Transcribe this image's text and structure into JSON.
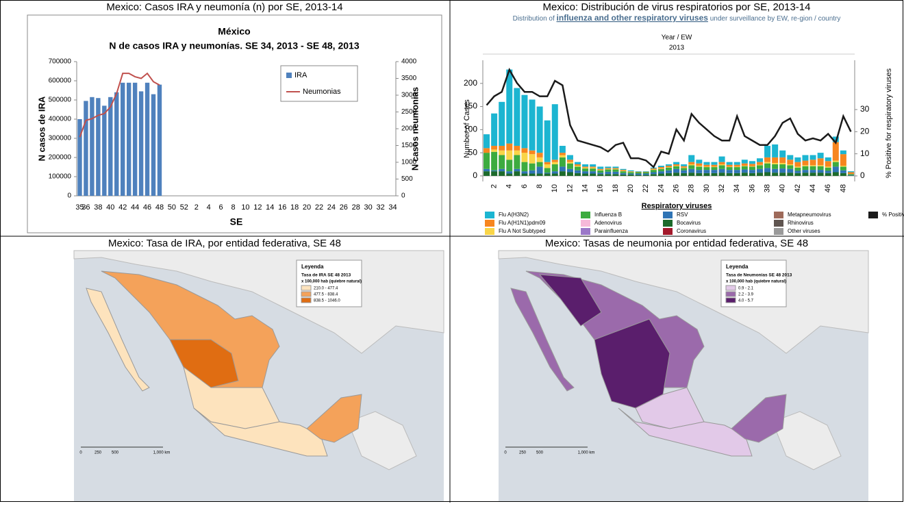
{
  "panels": [
    "Mexico: Casos IRA y neumonía (n) por SE, 2013-14",
    "Mexico: Distribución de virus respiratorios por SE, 2013-14",
    "Mexico: Tasa de IRA, por entidad federativa, SE 48",
    "Mexico: Tasas de neumonia por entidad federativa, SE 48"
  ],
  "chart_data": [
    {
      "type": "bar",
      "title": "México",
      "subtitle": "N de casos IRA y neumonías. SE 34, 2013 - SE 48, 2013",
      "x_label": "SE",
      "y_label": "N casos de IRA",
      "y2_label": "N casos neumonias",
      "categories": [
        "35",
        "36",
        null,
        "38",
        null,
        "40",
        null,
        "42",
        null,
        "44",
        null,
        "46",
        null,
        "48",
        null,
        "50",
        null,
        "52",
        null,
        "2",
        null,
        "4",
        null,
        "6",
        null,
        "8",
        null,
        "10",
        null,
        "12",
        null,
        "14",
        null,
        "16",
        null,
        "18",
        null,
        "20",
        null,
        "22",
        null,
        "24",
        null,
        "26",
        null,
        "28",
        null,
        "30",
        null,
        "32",
        null,
        "34"
      ],
      "series": [
        {
          "name": "IRA",
          "color": "#4f81bd",
          "values": [
            400000,
            495000,
            515000,
            510000,
            470000,
            515000,
            540000,
            590000,
            590000,
            590000,
            545000,
            590000,
            530000,
            580000,
            null,
            null,
            null,
            null,
            null,
            null,
            null,
            null,
            null,
            null,
            null,
            null,
            null,
            null,
            null,
            null,
            null,
            null,
            null,
            null,
            null,
            null,
            null,
            null,
            null,
            null,
            null,
            null,
            null,
            null,
            null,
            null,
            null,
            null,
            null,
            null,
            null,
            null
          ]
        },
        {
          "name": "Neumonias",
          "color": "#c0504d",
          "axis": "y2",
          "values": [
            1750,
            2250,
            2300,
            2400,
            2450,
            2650,
            3050,
            3650,
            3650,
            3550,
            3500,
            3650,
            3400,
            3300,
            null,
            null,
            null,
            null,
            null,
            null,
            null,
            null,
            null,
            null,
            null,
            null,
            null,
            null,
            null,
            null,
            null,
            null,
            null,
            null,
            null,
            null,
            null,
            null,
            null,
            null,
            null,
            null,
            null,
            null,
            null,
            null,
            null,
            null,
            null,
            null,
            null,
            null
          ]
        }
      ],
      "ylim": [
        0,
        700000
      ],
      "yticks": [
        0,
        100000,
        200000,
        300000,
        400000,
        500000,
        600000,
        700000
      ],
      "y2lim": [
        0,
        4000
      ],
      "y2ticks": [
        0,
        500,
        1000,
        1500,
        2000,
        2500,
        3000,
        3500,
        4000
      ],
      "grid": false,
      "legend": "upper right"
    },
    {
      "type": "stacked_bar",
      "title": "Distribution of ",
      "title_link": "influenza and other respiratory viruses",
      "title_end": " under surveillance by EW, re-gion / country",
      "x_label": "Year / EW",
      "x_group": "2013",
      "y_label": "Number of Cases",
      "y2_label": "% Positive for respiratory viruses",
      "legend_title": "Respiratory viruses",
      "categories": [
        null,
        "2",
        null,
        "4",
        null,
        "6",
        null,
        "8",
        null,
        "10",
        null,
        "12",
        null,
        "14",
        null,
        "16",
        null,
        "18",
        null,
        "20",
        null,
        "22",
        null,
        "24",
        null,
        "26",
        null,
        "28",
        null,
        "30",
        null,
        "32",
        null,
        "34",
        null,
        "36",
        null,
        "38",
        null,
        "40",
        null,
        "42",
        null,
        "44",
        null,
        "46",
        null,
        "48",
        null
      ],
      "series": [
        {
          "name": "Flu A(H3N2)",
          "color": "#1cb5d1",
          "values": [
            30,
            70,
            95,
            160,
            125,
            115,
            110,
            100,
            90,
            120,
            15,
            10,
            5,
            5,
            5,
            5,
            3,
            3,
            2,
            2,
            1,
            1,
            2,
            3,
            3,
            5,
            4,
            15,
            8,
            6,
            6,
            12,
            6,
            6,
            8,
            6,
            8,
            25,
            28,
            15,
            10,
            10,
            12,
            10,
            12,
            8,
            12,
            8,
            2
          ]
        },
        {
          "name": "Flu A(H1N1)pdm09",
          "color": "#f7861f",
          "values": [
            10,
            8,
            10,
            15,
            10,
            10,
            8,
            10,
            5,
            5,
            5,
            5,
            3,
            2,
            2,
            2,
            2,
            2,
            2,
            1,
            1,
            1,
            2,
            3,
            3,
            3,
            3,
            5,
            5,
            4,
            4,
            5,
            4,
            4,
            5,
            5,
            6,
            10,
            12,
            12,
            10,
            10,
            10,
            12,
            15,
            12,
            40,
            25,
            4
          ]
        },
        {
          "name": "Flu A Not Subtyped",
          "color": "#f9d548",
          "values": [
            0,
            5,
            10,
            20,
            10,
            20,
            20,
            10,
            8,
            5,
            5,
            3,
            2,
            2,
            2,
            1,
            1,
            1,
            1,
            1,
            0,
            0,
            1,
            1,
            1,
            1,
            1,
            2,
            2,
            1,
            1,
            2,
            1,
            1,
            1,
            1,
            1,
            3,
            3,
            3,
            2,
            2,
            2,
            2,
            2,
            2,
            3,
            2,
            0
          ]
        },
        {
          "name": "Influenza B",
          "color": "#3cab3f",
          "values": [
            35,
            40,
            30,
            25,
            30,
            20,
            15,
            10,
            10,
            15,
            20,
            12,
            8,
            6,
            6,
            5,
            5,
            5,
            4,
            3,
            3,
            3,
            5,
            5,
            6,
            6,
            5,
            8,
            7,
            6,
            6,
            8,
            6,
            6,
            7,
            7,
            8,
            10,
            10,
            9,
            8,
            7,
            8,
            8,
            8,
            7,
            10,
            8,
            2
          ]
        },
        {
          "name": "Adenovirus",
          "color": "#f6b9d9",
          "values": [
            0,
            0,
            0,
            0,
            0,
            0,
            0,
            0,
            0,
            0,
            0,
            0,
            0,
            0,
            0,
            0,
            0,
            0,
            0,
            0,
            0,
            0,
            0,
            0,
            0,
            0,
            0,
            0,
            0,
            0,
            0,
            0,
            0,
            0,
            0,
            0,
            0,
            0,
            0,
            0,
            0,
            0,
            0,
            0,
            0,
            0,
            0,
            0,
            0
          ]
        },
        {
          "name": "Parainfluenza",
          "color": "#9b78c8",
          "values": [
            0,
            0,
            0,
            0,
            0,
            0,
            0,
            0,
            0,
            0,
            0,
            0,
            0,
            0,
            0,
            0,
            0,
            0,
            0,
            0,
            0,
            0,
            0,
            0,
            0,
            0,
            0,
            0,
            0,
            0,
            0,
            0,
            0,
            0,
            0,
            0,
            0,
            0,
            0,
            0,
            0,
            0,
            0,
            0,
            0,
            0,
            0,
            0,
            0
          ]
        },
        {
          "name": "RSV",
          "color": "#2f74b5",
          "values": [
            5,
            2,
            5,
            5,
            5,
            5,
            7,
            15,
            2,
            5,
            10,
            7,
            6,
            5,
            5,
            3,
            5,
            5,
            3,
            2,
            3,
            3,
            4,
            5,
            6,
            8,
            6,
            8,
            7,
            7,
            7,
            8,
            7,
            7,
            7,
            7,
            8,
            9,
            8,
            9,
            8,
            5,
            6,
            6,
            6,
            5,
            12,
            6,
            1
          ]
        },
        {
          "name": "Bocavirus",
          "color": "#1c6a2b",
          "values": [
            10,
            10,
            10,
            5,
            10,
            5,
            5,
            5,
            5,
            5,
            10,
            8,
            6,
            5,
            5,
            4,
            4,
            4,
            3,
            3,
            2,
            2,
            4,
            5,
            6,
            7,
            6,
            7,
            6,
            6,
            6,
            7,
            6,
            6,
            7,
            6,
            7,
            8,
            7,
            7,
            7,
            6,
            7,
            7,
            7,
            6,
            8,
            6,
            1
          ]
        },
        {
          "name": "Coronavirus",
          "color": "#a3192b",
          "values": [
            0,
            0,
            0,
            0,
            0,
            0,
            0,
            0,
            0,
            0,
            0,
            0,
            0,
            0,
            0,
            0,
            0,
            0,
            0,
            0,
            0,
            0,
            0,
            0,
            0,
            0,
            0,
            0,
            0,
            0,
            0,
            0,
            0,
            0,
            0,
            0,
            0,
            0,
            0,
            0,
            0,
            0,
            0,
            0,
            0,
            0,
            0,
            0,
            0
          ]
        },
        {
          "name": "Metapneumovirus",
          "color": "#9e6a5a",
          "values": [
            0,
            0,
            0,
            0,
            0,
            0,
            0,
            0,
            0,
            0,
            0,
            0,
            0,
            0,
            0,
            0,
            0,
            0,
            0,
            0,
            0,
            0,
            0,
            0,
            0,
            0,
            0,
            0,
            0,
            0,
            0,
            0,
            0,
            0,
            0,
            0,
            0,
            0,
            0,
            0,
            0,
            0,
            0,
            0,
            0,
            0,
            0,
            0,
            0
          ]
        },
        {
          "name": "Rhinovirus",
          "color": "#5f5550",
          "values": [
            0,
            0,
            0,
            0,
            0,
            0,
            0,
            0,
            0,
            0,
            0,
            0,
            0,
            0,
            0,
            0,
            0,
            0,
            0,
            0,
            0,
            0,
            0,
            0,
            0,
            0,
            0,
            0,
            0,
            0,
            0,
            0,
            0,
            0,
            0,
            0,
            0,
            0,
            0,
            0,
            0,
            0,
            0,
            0,
            0,
            0,
            0,
            0,
            0
          ]
        },
        {
          "name": "Other viruses",
          "color": "#9a9a9a",
          "values": [
            0,
            0,
            0,
            0,
            0,
            0,
            0,
            0,
            0,
            0,
            0,
            0,
            0,
            0,
            0,
            0,
            0,
            0,
            0,
            0,
            0,
            0,
            0,
            0,
            0,
            0,
            0,
            0,
            0,
            0,
            0,
            0,
            0,
            0,
            0,
            0,
            0,
            0,
            0,
            0,
            0,
            0,
            0,
            0,
            0,
            0,
            0,
            0,
            0
          ]
        },
        {
          "name": "% Positive resp vir..",
          "color": "#1a1a1a",
          "axis": "y2",
          "values": [
            32,
            36,
            38,
            48,
            42,
            38,
            38,
            36,
            36,
            43,
            41,
            23,
            16,
            15,
            14,
            13,
            11,
            14,
            15,
            8,
            8,
            7,
            4,
            11,
            10,
            21,
            16,
            28,
            24,
            21,
            18,
            16,
            16,
            27,
            18,
            16,
            14,
            14,
            18,
            24,
            26,
            19,
            16,
            17,
            16,
            19,
            15,
            27,
            20
          ]
        }
      ],
      "ylim": [
        -12,
        250
      ],
      "yticks": [
        0,
        50,
        100,
        150,
        200
      ],
      "y2lim": [
        -2.5,
        52.3
      ],
      "y2ticks": [
        0,
        10,
        20,
        30
      ],
      "grid": false,
      "legend": "bottom"
    }
  ],
  "maps": [
    {
      "legend": "Leyenda",
      "title": "Tasa de IRA SE 48 2013",
      "units": "x 100,000 hab (quiebre natural)",
      "classes": [
        "210.0 - 477.4",
        "477.5 - 838.4",
        "838.5 - 1046.0"
      ],
      "colors": [
        "#fde3bd",
        "#f4a25a",
        "#e06d12"
      ],
      "scale": [
        "0",
        "250",
        "500",
        "1,000 km"
      ]
    },
    {
      "legend": "Leyenda",
      "title": "Tasa de Neumonias SE 48 2013",
      "units": "x 100,000 hab (quiebre natural)",
      "classes": [
        "0.9 - 2.1",
        "2.2 - 3.9",
        "4.0 - 5.7"
      ],
      "colors": [
        "#e2c9e8",
        "#9b6aab",
        "#5a1e6c"
      ],
      "scale": [
        "0",
        "250",
        "500",
        "1,000 km"
      ]
    }
  ]
}
